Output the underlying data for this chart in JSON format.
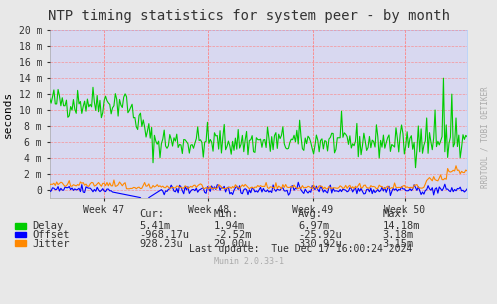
{
  "title": "NTP timing statistics for system peer - by month",
  "ylabel": "seconds",
  "watermark": "RRDTOOL / TOBI OETIKER",
  "munin_version": "Munin 2.0.33-1",
  "background_color": "#e8e8e8",
  "plot_bg_color": "#d8d8f0",
  "grid_color": "#ff8080",
  "title_color": "#333333",
  "week_labels": [
    "Week 47",
    "Week 48",
    "Week 49",
    "Week 50"
  ],
  "yticks": [
    "0",
    "2 m",
    "4 m",
    "6 m",
    "8 m",
    "10 m",
    "12 m",
    "14 m",
    "16 m",
    "18 m",
    "20 m"
  ],
  "ytick_values": [
    0,
    0.002,
    0.004,
    0.006,
    0.008,
    0.01,
    0.012,
    0.014,
    0.016,
    0.018,
    0.02
  ],
  "delay_color": "#00cc00",
  "offset_color": "#0000ff",
  "jitter_color": "#ff8800",
  "legend_labels": [
    "Delay",
    "Offset",
    "Jitter"
  ],
  "stats": {
    "cur": [
      "5.41m",
      "-968.17u",
      "928.23u"
    ],
    "min": [
      "1.94m",
      "-2.52m",
      "29.00u"
    ],
    "avg": [
      "6.97m",
      "-25.92u",
      "330.92u"
    ],
    "max": [
      "14.18m",
      "3.18m",
      "3.15m"
    ]
  },
  "last_update": "Last update:  Tue Dec 17 16:00:24 2024",
  "n_points": 300
}
